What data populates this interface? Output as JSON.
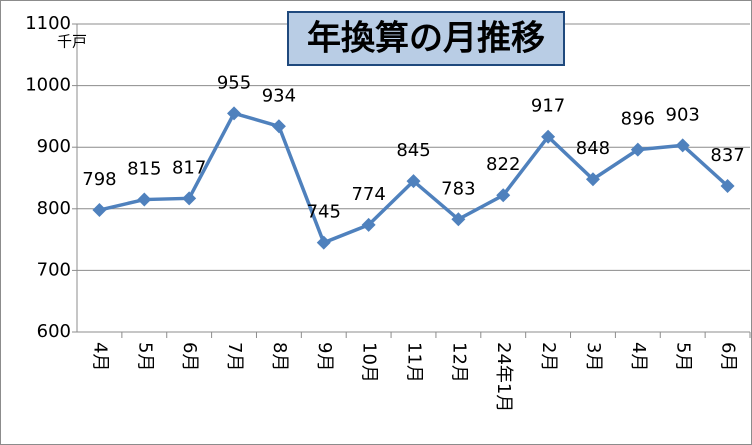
{
  "chart_data": {
    "type": "line",
    "title": "年換算の月推移",
    "y_unit_label": "千戸",
    "categories": [
      "4月",
      "5月",
      "6月",
      "7月",
      "8月",
      "9月",
      "10月",
      "11月",
      "12月",
      "24年1月",
      "2月",
      "3月",
      "4月",
      "5月",
      "6月"
    ],
    "series": [
      {
        "name": "年換算",
        "color": "#4f81bd",
        "values": [
          798,
          815,
          817,
          955,
          934,
          745,
          774,
          845,
          783,
          822,
          917,
          848,
          896,
          903,
          837
        ]
      }
    ],
    "ylim": [
      600,
      1100
    ],
    "yticks": [
      600,
      700,
      800,
      900,
      1000,
      1100
    ],
    "grid": true
  }
}
